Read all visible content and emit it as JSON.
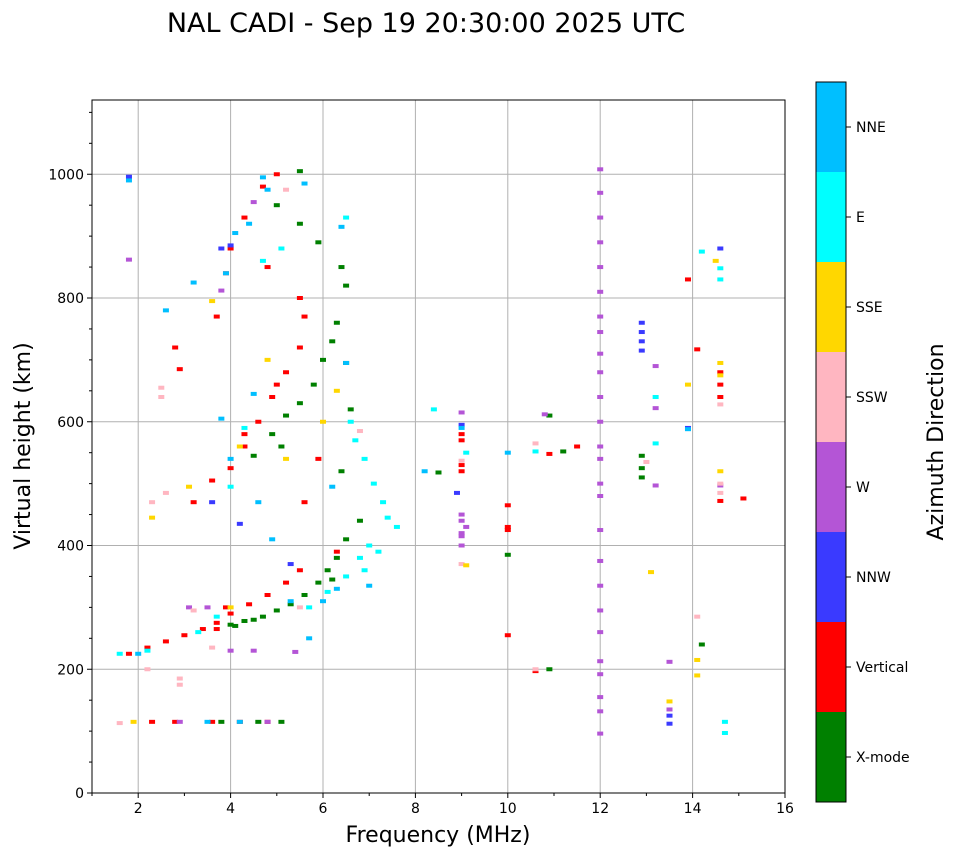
{
  "chart_data": {
    "type": "scatter",
    "title": "NAL CADI - Sep 19 20:30:00 2025 UTC",
    "xlabel": "Frequency (MHz)",
    "ylabel": "Virtual height (km)",
    "xlim": [
      1,
      16
    ],
    "ylim": [
      0,
      1120
    ],
    "xticks": [
      2,
      4,
      6,
      8,
      10,
      12,
      14,
      16
    ],
    "yticks": [
      0,
      200,
      400,
      600,
      800,
      1000
    ],
    "grid": true,
    "colorbar": {
      "label": "Azimuth Direction",
      "placement": "right",
      "categories": [
        "X-mode",
        "Vertical",
        "NNW",
        "W",
        "SSW",
        "SSE",
        "E",
        "NNE"
      ],
      "colors": [
        "#008000",
        "#ff0000",
        "#3a3aff",
        "#b455d6",
        "#ffb6c1",
        "#ffd700",
        "#00ffff",
        "#00bfff"
      ]
    },
    "series": [
      {
        "name": "X-mode",
        "points": [
          [
            4,
            272
          ],
          [
            4.3,
            278
          ],
          [
            4.7,
            285
          ],
          [
            5,
            295
          ],
          [
            5.3,
            305
          ],
          [
            5.6,
            320
          ],
          [
            5.9,
            340
          ],
          [
            6.1,
            360
          ],
          [
            6.3,
            380
          ],
          [
            6.5,
            410
          ],
          [
            6.8,
            440
          ],
          [
            4.5,
            545
          ],
          [
            4.9,
            580
          ],
          [
            5.2,
            610
          ],
          [
            5.5,
            630
          ],
          [
            5.8,
            660
          ],
          [
            6,
            700
          ],
          [
            6.2,
            730
          ],
          [
            6.3,
            760
          ],
          [
            6.5,
            820
          ],
          [
            6.4,
            850
          ],
          [
            5.5,
            920
          ],
          [
            5,
            950
          ],
          [
            5.9,
            890
          ],
          [
            3.8,
            115
          ],
          [
            5.1,
            115
          ],
          [
            4.6,
            115
          ],
          [
            6.5,
            695
          ],
          [
            6.6,
            620
          ],
          [
            6.4,
            520
          ],
          [
            10,
            385
          ],
          [
            10.9,
            200
          ],
          [
            10.9,
            610
          ],
          [
            11.2,
            552
          ],
          [
            12.9,
            545
          ],
          [
            12.9,
            525
          ],
          [
            12.9,
            510
          ],
          [
            14.2,
            240
          ],
          [
            8.5,
            518
          ],
          [
            5.5,
            1005
          ],
          [
            4.1,
            270
          ],
          [
            4.5,
            280
          ],
          [
            5.1,
            560
          ],
          [
            6.2,
            345
          ]
        ]
      },
      {
        "name": "Vertical",
        "points": [
          [
            1.8,
            225
          ],
          [
            2.2,
            235
          ],
          [
            2.6,
            245
          ],
          [
            3,
            255
          ],
          [
            3.4,
            265
          ],
          [
            3.7,
            275
          ],
          [
            4,
            290
          ],
          [
            4.4,
            305
          ],
          [
            4.8,
            320
          ],
          [
            5.2,
            340
          ],
          [
            5.5,
            360
          ],
          [
            2.3,
            115
          ],
          [
            2.8,
            115
          ],
          [
            3.6,
            115
          ],
          [
            4.2,
            115
          ],
          [
            4.8,
            115
          ],
          [
            3.2,
            470
          ],
          [
            3.6,
            505
          ],
          [
            4,
            525
          ],
          [
            4.3,
            560
          ],
          [
            4.6,
            600
          ],
          [
            4.9,
            640
          ],
          [
            5.2,
            680
          ],
          [
            5.5,
            720
          ],
          [
            5.6,
            770
          ],
          [
            5.5,
            800
          ],
          [
            3.7,
            770
          ],
          [
            3.9,
            840
          ],
          [
            4,
            880
          ],
          [
            4.3,
            930
          ],
          [
            4.7,
            980
          ],
          [
            5,
            1000
          ],
          [
            2.8,
            720
          ],
          [
            4.8,
            850
          ],
          [
            5.6,
            470
          ],
          [
            5.9,
            540
          ],
          [
            6.3,
            390
          ],
          [
            10,
            465
          ],
          [
            10,
            430
          ],
          [
            10,
            425
          ],
          [
            10,
            255
          ],
          [
            9,
            580
          ],
          [
            9,
            570
          ],
          [
            9,
            530
          ],
          [
            9,
            520
          ],
          [
            10.6,
            197
          ],
          [
            10.9,
            548
          ],
          [
            11.5,
            560
          ],
          [
            13.9,
            830
          ],
          [
            14.1,
            717
          ],
          [
            14.6,
            640
          ],
          [
            14.6,
            660
          ],
          [
            14.6,
            680
          ],
          [
            14.6,
            472
          ],
          [
            15.1,
            476
          ],
          [
            2.9,
            685
          ],
          [
            3.7,
            265
          ],
          [
            4.3,
            580
          ],
          [
            5,
            660
          ],
          [
            3.9,
            300
          ]
        ]
      },
      {
        "name": "NNW",
        "points": [
          [
            1.8,
            996
          ],
          [
            3.8,
            880
          ],
          [
            4,
            885
          ],
          [
            3.6,
            470
          ],
          [
            4.2,
            435
          ],
          [
            5.3,
            370
          ],
          [
            9,
            595
          ],
          [
            13.5,
            112
          ],
          [
            13.5,
            125
          ],
          [
            12.9,
            760
          ],
          [
            12.9,
            745
          ],
          [
            12.9,
            730
          ],
          [
            12.9,
            715
          ],
          [
            14.6,
            880
          ],
          [
            13.9,
            590
          ],
          [
            8.9,
            485
          ]
        ]
      },
      {
        "name": "W",
        "points": [
          [
            1.8,
            862
          ],
          [
            3.8,
            812
          ],
          [
            4.5,
            955
          ],
          [
            3.1,
            300
          ],
          [
            3.5,
            300
          ],
          [
            4,
            230
          ],
          [
            4.5,
            230
          ],
          [
            5.4,
            228
          ],
          [
            9,
            450
          ],
          [
            9,
            440
          ],
          [
            9,
            420
          ],
          [
            9,
            415
          ],
          [
            9,
            400
          ],
          [
            9.1,
            430
          ],
          [
            9,
            615
          ],
          [
            12,
            1008
          ],
          [
            12,
            970
          ],
          [
            12,
            930
          ],
          [
            12,
            890
          ],
          [
            12,
            850
          ],
          [
            12,
            810
          ],
          [
            12,
            770
          ],
          [
            12,
            745
          ],
          [
            12,
            710
          ],
          [
            12,
            680
          ],
          [
            12,
            640
          ],
          [
            12,
            600
          ],
          [
            12,
            560
          ],
          [
            12,
            540
          ],
          [
            12,
            500
          ],
          [
            12,
            480
          ],
          [
            12,
            425
          ],
          [
            12,
            375
          ],
          [
            12,
            335
          ],
          [
            12,
            295
          ],
          [
            12,
            260
          ],
          [
            12,
            213
          ],
          [
            12,
            192
          ],
          [
            12,
            155
          ],
          [
            12,
            132
          ],
          [
            12,
            96
          ],
          [
            13.2,
            690
          ],
          [
            13.2,
            622
          ],
          [
            13.2,
            497
          ],
          [
            13.5,
            212
          ],
          [
            13.5,
            135
          ],
          [
            14.6,
            497
          ],
          [
            10.8,
            612
          ],
          [
            2.9,
            115
          ],
          [
            4.8,
            115
          ]
        ]
      },
      {
        "name": "SSW",
        "points": [
          [
            2.5,
            640
          ],
          [
            2.5,
            655
          ],
          [
            2.9,
            175
          ],
          [
            2.9,
            185
          ],
          [
            2.3,
            470
          ],
          [
            2.6,
            485
          ],
          [
            3.2,
            295
          ],
          [
            3.6,
            235
          ],
          [
            5.2,
            975
          ],
          [
            5.5,
            300
          ],
          [
            9,
            537
          ],
          [
            9,
            370
          ],
          [
            10.6,
            565
          ],
          [
            10.6,
            200
          ],
          [
            14.6,
            485
          ],
          [
            14.6,
            500
          ],
          [
            14.6,
            628
          ],
          [
            14.1,
            285
          ],
          [
            13,
            535
          ],
          [
            1.6,
            113
          ],
          [
            2.2,
            200
          ],
          [
            6.8,
            585
          ]
        ]
      },
      {
        "name": "SSE",
        "points": [
          [
            2.3,
            445
          ],
          [
            3.1,
            495
          ],
          [
            3.6,
            795
          ],
          [
            4.8,
            700
          ],
          [
            4.2,
            560
          ],
          [
            5.2,
            540
          ],
          [
            6.3,
            650
          ],
          [
            9.1,
            368
          ],
          [
            13.1,
            357
          ],
          [
            13.5,
            148
          ],
          [
            14.1,
            215
          ],
          [
            14.1,
            190
          ],
          [
            14.6,
            520
          ],
          [
            14.6,
            695
          ],
          [
            14.6,
            675
          ],
          [
            14.5,
            860
          ],
          [
            13.9,
            660
          ],
          [
            6,
            600
          ],
          [
            4,
            300
          ],
          [
            1.9,
            115
          ]
        ]
      },
      {
        "name": "E",
        "points": [
          [
            2.2,
            230
          ],
          [
            3.3,
            260
          ],
          [
            3.7,
            285
          ],
          [
            4,
            495
          ],
          [
            4.3,
            590
          ],
          [
            4.7,
            860
          ],
          [
            5.1,
            880
          ],
          [
            6.5,
            930
          ],
          [
            6.6,
            600
          ],
          [
            6.7,
            570
          ],
          [
            6.9,
            540
          ],
          [
            7.1,
            500
          ],
          [
            7.3,
            470
          ],
          [
            7.4,
            445
          ],
          [
            7.6,
            430
          ],
          [
            7,
            400
          ],
          [
            6.8,
            380
          ],
          [
            6.5,
            350
          ],
          [
            6.1,
            325
          ],
          [
            5.7,
            300
          ],
          [
            9.1,
            550
          ],
          [
            10.6,
            552
          ],
          [
            13.2,
            640
          ],
          [
            13.2,
            565
          ],
          [
            14.7,
            115
          ],
          [
            14.7,
            97
          ],
          [
            14.6,
            848
          ],
          [
            14.6,
            830
          ],
          [
            14.2,
            875
          ],
          [
            8.4,
            620
          ],
          [
            1.6,
            225
          ],
          [
            7.2,
            390
          ],
          [
            6.9,
            360
          ]
        ]
      },
      {
        "name": "NNE",
        "points": [
          [
            1.8,
            990
          ],
          [
            2.6,
            780
          ],
          [
            3.2,
            825
          ],
          [
            3.9,
            840
          ],
          [
            4.1,
            905
          ],
          [
            4.4,
            920
          ],
          [
            4.8,
            975
          ],
          [
            5.6,
            985
          ],
          [
            4.5,
            645
          ],
          [
            3.8,
            605
          ],
          [
            4.6,
            470
          ],
          [
            4,
            540
          ],
          [
            4.9,
            410
          ],
          [
            6,
            310
          ],
          [
            6.3,
            330
          ],
          [
            6.2,
            495
          ],
          [
            8.2,
            520
          ],
          [
            9,
            590
          ],
          [
            10,
            550
          ],
          [
            13.9,
            588
          ],
          [
            3.5,
            115
          ],
          [
            4.2,
            115
          ],
          [
            2,
            225
          ],
          [
            5.3,
            310
          ],
          [
            5.7,
            250
          ],
          [
            6.4,
            915
          ],
          [
            6.5,
            695
          ],
          [
            7,
            335
          ],
          [
            4.7,
            995
          ]
        ]
      }
    ]
  }
}
